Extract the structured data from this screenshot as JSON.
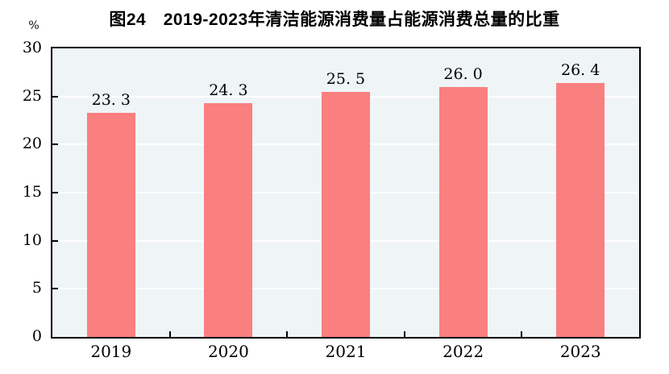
{
  "chart_data": {
    "type": "bar",
    "title": "图24　2019-2023年清洁能源消费量占能源消费总量的比重",
    "unit_label": "%",
    "categories": [
      "2019",
      "2020",
      "2021",
      "2022",
      "2023"
    ],
    "values": [
      23.3,
      24.3,
      25.5,
      26.0,
      26.4
    ],
    "value_labels": [
      "23. 3",
      "24. 3",
      "25. 5",
      "26. 0",
      "26. 4"
    ],
    "xlabel": "",
    "ylabel": "%",
    "ylim": [
      0,
      30
    ],
    "yticks": [
      0,
      5,
      10,
      15,
      20,
      25,
      30
    ],
    "grid": "horizontal white gridlines at each y tick",
    "legend": "none",
    "colors": {
      "bar": "#FA7F7F",
      "plot_background": "#EFF4F7",
      "gridline": "#FFFFFF",
      "axis": "#000000",
      "text": "#000000"
    }
  }
}
